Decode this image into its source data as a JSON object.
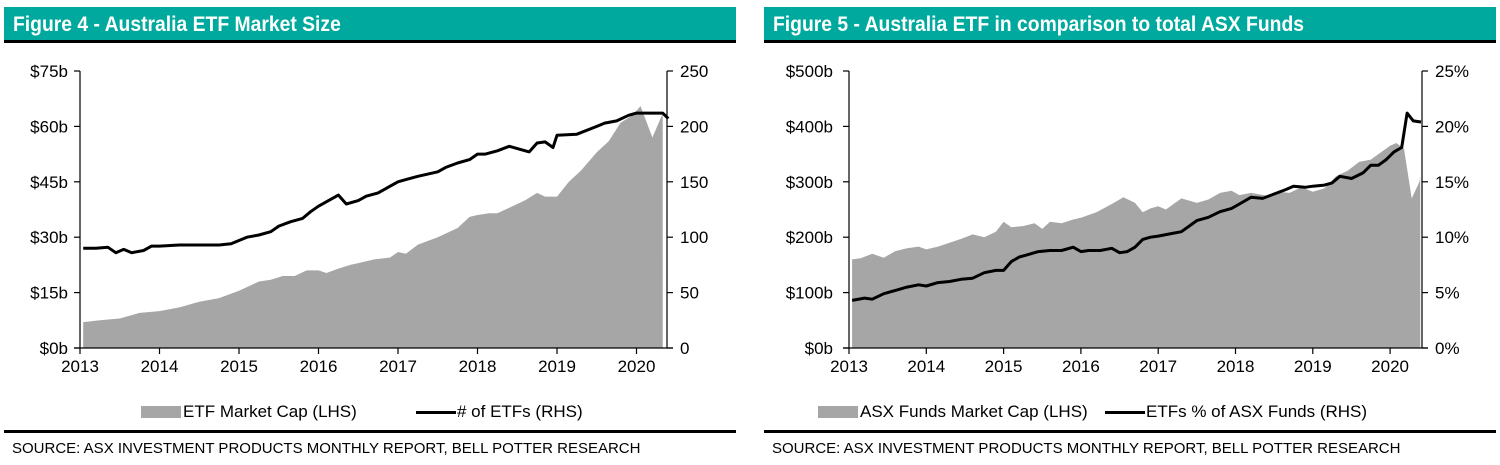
{
  "figures": [
    {
      "title": "Figure 4 - Australia ETF Market Size",
      "legend": [
        "ETF Market Cap (LHS)",
        "# of ETFs (RHS)"
      ],
      "source": "SOURCE: ASX INVESTMENT PRODUCTS MONTHLY REPORT, BELL POTTER RESEARCH"
    },
    {
      "title": "Figure 5 - Australia ETF in comparison to total ASX Funds",
      "legend": [
        "ASX Funds Market Cap (LHS)",
        "ETFs % of ASX Funds (RHS)"
      ],
      "source": "SOURCE: ASX INVESTMENT PRODUCTS MONTHLY REPORT, BELL POTTER RESEARCH"
    }
  ],
  "colors": {
    "header_bg": "#00a99d",
    "area": "#a6a6a6",
    "line": "#000000"
  },
  "chart_data": [
    {
      "type": "area+line",
      "title": "Figure 4 - Australia ETF Market Size",
      "x_tick_labels": [
        "2013",
        "2014",
        "2015",
        "2016",
        "2017",
        "2018",
        "2019",
        "2020"
      ],
      "xlim": [
        2013.0,
        2020.5
      ],
      "y_left": {
        "tick_labels": [
          "$0b",
          "$15b",
          "$30b",
          "$45b",
          "$60b",
          "$75b"
        ],
        "ylim": [
          0,
          75
        ]
      },
      "y_right": {
        "tick_labels": [
          "0",
          "50",
          "100",
          "150",
          "200",
          "250"
        ],
        "ylim": [
          0,
          250
        ]
      },
      "series": [
        {
          "name": "ETF Market Cap (LHS)",
          "kind": "area",
          "axis": "left",
          "unit": "$b",
          "x": [
            2013.04,
            2013.25,
            2013.5,
            2013.75,
            2014.0,
            2014.25,
            2014.5,
            2014.75,
            2015.0,
            2015.25,
            2015.4,
            2015.55,
            2015.7,
            2015.85,
            2016.0,
            2016.1,
            2016.25,
            2016.4,
            2016.5,
            2016.7,
            2016.9,
            2017.0,
            2017.1,
            2017.25,
            2017.5,
            2017.75,
            2017.9,
            2018.0,
            2018.15,
            2018.25,
            2018.4,
            2018.6,
            2018.75,
            2018.85,
            2019.0,
            2019.15,
            2019.3,
            2019.5,
            2019.65,
            2019.8,
            2019.95,
            2020.05,
            2020.2,
            2020.33
          ],
          "values": [
            7.0,
            7.5,
            8.0,
            9.5,
            10.0,
            11.0,
            12.5,
            13.5,
            15.5,
            18.0,
            18.5,
            19.5,
            19.5,
            21.0,
            21.0,
            20.3,
            21.5,
            22.5,
            23.0,
            24.0,
            24.5,
            26.0,
            25.5,
            28.0,
            30.0,
            32.5,
            35.5,
            36.0,
            36.5,
            36.5,
            38.0,
            40.0,
            42.0,
            41.0,
            41.0,
            45.0,
            48.0,
            53.0,
            56.0,
            61.0,
            63.0,
            65.5,
            57.0,
            63.5
          ]
        },
        {
          "name": "# of ETFs (RHS)",
          "kind": "line",
          "axis": "right",
          "unit": "count",
          "x": [
            2013.04,
            2013.2,
            2013.35,
            2013.45,
            2013.55,
            2013.65,
            2013.8,
            2013.9,
            2014.0,
            2014.25,
            2014.5,
            2014.75,
            2014.9,
            2015.0,
            2015.1,
            2015.25,
            2015.4,
            2015.5,
            2015.65,
            2015.8,
            2015.9,
            2016.0,
            2016.25,
            2016.35,
            2016.5,
            2016.6,
            2016.75,
            2016.9,
            2017.0,
            2017.1,
            2017.25,
            2017.5,
            2017.6,
            2017.75,
            2017.9,
            2018.0,
            2018.1,
            2018.25,
            2018.4,
            2018.5,
            2018.65,
            2018.75,
            2018.85,
            2018.95,
            2019.0,
            2019.25,
            2019.5,
            2019.6,
            2019.75,
            2019.9,
            2020.0,
            2020.1,
            2020.25,
            2020.33,
            2020.4
          ],
          "values": [
            90,
            90,
            91,
            86,
            89,
            86,
            88,
            92,
            92,
            93,
            93,
            93,
            94,
            97,
            100,
            102,
            105,
            110,
            114,
            117,
            123,
            128,
            138,
            130,
            133,
            137,
            140,
            146,
            150,
            152,
            155,
            159,
            163,
            167,
            170,
            175,
            175,
            178,
            182,
            180,
            177,
            185,
            186,
            181,
            192,
            193,
            200,
            203,
            205,
            210,
            212,
            212,
            212,
            212,
            207
          ]
        }
      ]
    },
    {
      "type": "area+line",
      "title": "Figure 5 - Australia ETF in comparison to total ASX Funds",
      "x_tick_labels": [
        "2013",
        "2014",
        "2015",
        "2016",
        "2017",
        "2018",
        "2019",
        "2020"
      ],
      "xlim": [
        2013.0,
        2020.5
      ],
      "y_left": {
        "tick_labels": [
          "$0b",
          "$100b",
          "$200b",
          "$300b",
          "$400b",
          "$500b"
        ],
        "ylim": [
          0,
          500
        ]
      },
      "y_right": {
        "tick_labels": [
          "0%",
          "5%",
          "10%",
          "15%",
          "20%",
          "25%"
        ],
        "ylim": [
          0,
          25
        ]
      },
      "series": [
        {
          "name": "ASX Funds Market Cap (LHS)",
          "kind": "area",
          "axis": "left",
          "unit": "$b",
          "x": [
            2013.04,
            2013.15,
            2013.3,
            2013.45,
            2013.6,
            2013.75,
            2013.9,
            2014.0,
            2014.15,
            2014.3,
            2014.45,
            2014.6,
            2014.75,
            2014.9,
            2015.0,
            2015.1,
            2015.25,
            2015.4,
            2015.5,
            2015.6,
            2015.75,
            2015.9,
            2016.0,
            2016.2,
            2016.4,
            2016.55,
            2016.7,
            2016.8,
            2016.9,
            2017.0,
            2017.1,
            2017.3,
            2017.5,
            2017.65,
            2017.8,
            2017.95,
            2018.05,
            2018.2,
            2018.4,
            2018.55,
            2018.7,
            2018.85,
            2019.0,
            2019.15,
            2019.3,
            2019.45,
            2019.6,
            2019.75,
            2019.9,
            2020.0,
            2020.08,
            2020.18,
            2020.28,
            2020.38,
            2020.39
          ],
          "values": [
            160,
            162,
            170,
            163,
            175,
            180,
            183,
            178,
            183,
            190,
            197,
            205,
            200,
            210,
            228,
            218,
            220,
            225,
            215,
            228,
            225,
            232,
            235,
            245,
            260,
            272,
            262,
            245,
            252,
            256,
            250,
            270,
            262,
            268,
            280,
            284,
            276,
            280,
            275,
            282,
            280,
            290,
            282,
            288,
            310,
            320,
            336,
            340,
            355,
            365,
            370,
            360,
            270,
            300,
            310
          ]
        },
        {
          "name": "ETFs % of ASX Funds (RHS)",
          "kind": "line",
          "axis": "right",
          "unit": "%",
          "x": [
            2013.04,
            2013.2,
            2013.3,
            2013.45,
            2013.6,
            2013.75,
            2013.9,
            2014.0,
            2014.15,
            2014.3,
            2014.45,
            2014.6,
            2014.75,
            2014.9,
            2015.0,
            2015.1,
            2015.2,
            2015.3,
            2015.45,
            2015.6,
            2015.75,
            2015.9,
            2016.0,
            2016.1,
            2016.25,
            2016.4,
            2016.5,
            2016.6,
            2016.7,
            2016.8,
            2016.9,
            2017.0,
            2017.15,
            2017.3,
            2017.5,
            2017.65,
            2017.8,
            2017.95,
            2018.05,
            2018.2,
            2018.35,
            2018.5,
            2018.65,
            2018.75,
            2018.9,
            2019.0,
            2019.15,
            2019.25,
            2019.35,
            2019.5,
            2019.65,
            2019.75,
            2019.85,
            2019.95,
            2020.05,
            2020.15,
            2020.22,
            2020.3,
            2020.4
          ],
          "values": [
            4.3,
            4.5,
            4.4,
            4.9,
            5.2,
            5.5,
            5.7,
            5.6,
            5.9,
            6.0,
            6.2,
            6.3,
            6.8,
            7.0,
            7.0,
            7.8,
            8.2,
            8.4,
            8.7,
            8.8,
            8.8,
            9.1,
            8.7,
            8.8,
            8.8,
            9.0,
            8.6,
            8.7,
            9.1,
            9.8,
            10.0,
            10.1,
            10.3,
            10.5,
            11.5,
            11.8,
            12.3,
            12.6,
            13.0,
            13.6,
            13.5,
            13.9,
            14.3,
            14.6,
            14.5,
            14.6,
            14.7,
            14.9,
            15.5,
            15.3,
            15.8,
            16.5,
            16.5,
            17.0,
            17.7,
            18.1,
            21.2,
            20.5,
            20.4
          ]
        }
      ]
    }
  ]
}
